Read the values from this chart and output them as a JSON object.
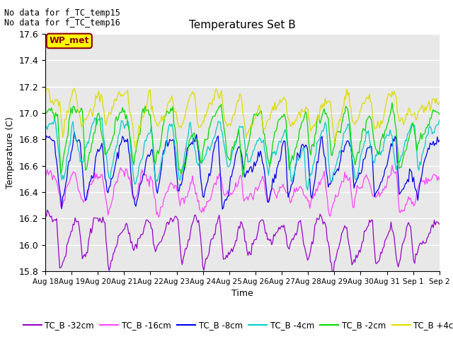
{
  "title": "Temperatures Set B",
  "xlabel": "Time",
  "ylabel": "Temperature (C)",
  "ylim": [
    15.8,
    17.6
  ],
  "background_color": "#e8e8e8",
  "text_annotations": [
    "No data for f_TC_temp15",
    "No data for f_TC_temp16"
  ],
  "wp_met_label": "WP_met",
  "wp_met_box_color": "#ffff00",
  "wp_met_text_color": "#8b0000",
  "xtick_labels": [
    "Aug 18",
    "Aug 19",
    "Aug 20",
    "Aug 21",
    "Aug 22",
    "Aug 23",
    "Aug 24",
    "Aug 25",
    "Aug 26",
    "Aug 27",
    "Aug 28",
    "Aug 29",
    "Aug 30",
    "Aug 31",
    "Sep 1",
    "Sep 2"
  ],
  "series": [
    {
      "label": "TC_B -32cm",
      "color": "#9900cc",
      "base": 16.18,
      "noise": 0.025,
      "dip_depth": 0.28,
      "dip_recover": 0.04
    },
    {
      "label": "TC_B -16cm",
      "color": "#ff44ff",
      "base": 16.52,
      "noise": 0.025,
      "dip_depth": 0.22,
      "dip_recover": 0.04
    },
    {
      "label": "TC_B -8cm",
      "color": "#0000ee",
      "base": 16.78,
      "noise": 0.03,
      "dip_depth": 0.4,
      "dip_recover": 0.05
    },
    {
      "label": "TC_B -4cm",
      "color": "#00cccc",
      "base": 16.9,
      "noise": 0.03,
      "dip_depth": 0.35,
      "dip_recover": 0.04
    },
    {
      "label": "TC_B -2cm",
      "color": "#00dd00",
      "base": 17.0,
      "noise": 0.035,
      "dip_depth": 0.35,
      "dip_recover": 0.04
    },
    {
      "label": "TC_B +4cm",
      "color": "#dddd00",
      "base": 17.12,
      "noise": 0.04,
      "dip_depth": 0.25,
      "dip_recover": 0.03
    }
  ],
  "n_points": 384,
  "yticks": [
    15.8,
    16.0,
    16.2,
    16.4,
    16.6,
    16.8,
    17.0,
    17.2,
    17.4,
    17.6
  ]
}
